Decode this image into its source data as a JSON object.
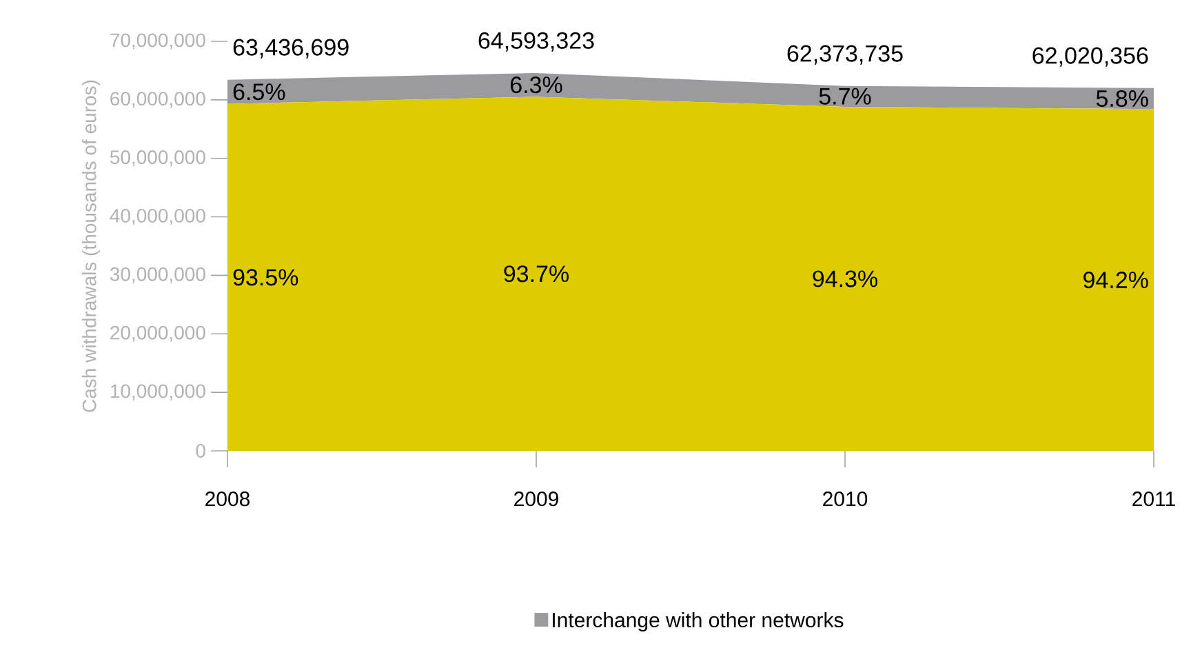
{
  "chart_data": {
    "type": "area",
    "stacked": true,
    "ylabel": "Cash withdrawals (thousands of euros)",
    "categories": [
      "2008",
      "2009",
      "2010",
      "2011"
    ],
    "series": [
      {
        "color": "#dfcc00",
        "values": [
          59313314,
          60523944,
          58818432,
          58423175
        ]
      },
      {
        "name": "Interchange with other networks",
        "color": "#9b9a9f",
        "values": [
          4123385,
          4069379,
          3555303,
          3597181
        ]
      }
    ],
    "totals": [
      "63,436,699",
      "64,593,323",
      "62,373,735",
      "62,020,356"
    ],
    "annotations": [
      "93.5%",
      "93.7%",
      "94.3%",
      "94.2%",
      "6.5%",
      "6.3%",
      "5.7%",
      "5.8%"
    ],
    "ylim": [
      0,
      70000000
    ],
    "yticks": [
      {
        "value": 0,
        "label": "0"
      },
      {
        "value": 10000000,
        "label": "10,000,000"
      },
      {
        "value": 20000000,
        "label": "20,000,000"
      },
      {
        "value": 30000000,
        "label": "30,000,000"
      },
      {
        "value": 40000000,
        "label": "40,000,000"
      },
      {
        "value": 50000000,
        "label": "50,000,000"
      },
      {
        "value": 60000000,
        "label": "60,000,000"
      },
      {
        "value": 70000000,
        "label": "70,000,000"
      }
    ],
    "grid": false,
    "legend": "bottom"
  }
}
